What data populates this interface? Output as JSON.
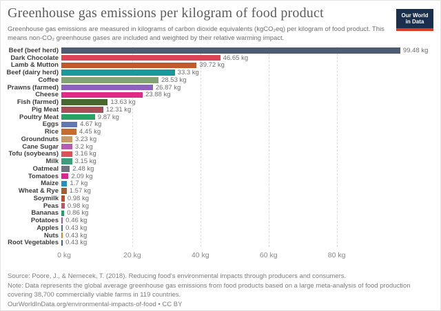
{
  "header": {
    "logo": {
      "line1": "Our World",
      "line2": "in Data",
      "bg": "#1a2e4d",
      "accent": "#dc3a22"
    }
  },
  "chart_data": {
    "type": "bar",
    "orientation": "horizontal",
    "title": "Greenhouse gas emissions per kilogram of food product",
    "subtitle": "Greenhouse gas emissions are measured in kilograms of carbon dioxide equivalents (kgCO₂eq) per kilogram of food product. This means non-CO₂ greenhouse gases are included and weighted by their relative warming impact.",
    "unit": "kg",
    "xlim": [
      0,
      109.2
    ],
    "grid": true,
    "categories": [
      "Beef (beef herd)",
      "Dark Chocolate",
      "Lamb & Mutton",
      "Beef (dairy herd)",
      "Coffee",
      "Prawns (farmed)",
      "Cheese",
      "Fish (farmed)",
      "Pig Meat",
      "Poultry Meat",
      "Eggs",
      "Rice",
      "Groundnuts",
      "Cane Sugar",
      "Tofu (soybeans)",
      "Milk",
      "Oatmeal",
      "Tomatoes",
      "Maize",
      "Wheat & Rye",
      "Soymilk",
      "Peas",
      "Bananas",
      "Potatoes",
      "Apples",
      "Nuts",
      "Root Vegetables"
    ],
    "values": [
      99.48,
      46.65,
      39.72,
      33.3,
      28.53,
      26.87,
      23.88,
      13.63,
      12.31,
      9.87,
      4.67,
      4.45,
      3.23,
      3.2,
      3.16,
      3.15,
      2.48,
      2.09,
      1.7,
      1.57,
      0.98,
      0.98,
      0.86,
      0.46,
      0.43,
      0.43,
      0.43
    ],
    "value_labels": [
      "99.48 kg",
      "46.65 kg",
      "39.72 kg",
      "33.3 kg",
      "28.53 kg",
      "26.87 kg",
      "23.88 kg",
      "13.63 kg",
      "12.31 kg",
      "9.87 kg",
      "4.67 kg",
      "4.45 kg",
      "3.23 kg",
      "3.2 kg",
      "3.16 kg",
      "3.15 kg",
      "2.48 kg",
      "2.09 kg",
      "1.7 kg",
      "1.57 kg",
      "0.98 kg",
      "0.98 kg",
      "0.86 kg",
      "0.46 kg",
      "0.43 kg",
      "0.43 kg",
      "0.43 kg"
    ],
    "colors": [
      "#4d5b75",
      "#db4357",
      "#c2592a",
      "#18999c",
      "#83a374",
      "#8e61c0",
      "#e02a86",
      "#47682e",
      "#a84e57",
      "#27a463",
      "#6377b2",
      "#c96b2d",
      "#c79b67",
      "#b75cb5",
      "#db5258",
      "#3d9c79",
      "#6e7581",
      "#e0238e",
      "#2492c0",
      "#a85d33",
      "#c44a21",
      "#ca4f63",
      "#1ea267",
      "#a05aa3",
      "#4a6fb1",
      "#d28436",
      "#3e5c94"
    ],
    "x_ticks": [
      {
        "value": 0,
        "label": "0 kg"
      },
      {
        "value": 20,
        "label": "20 kg"
      },
      {
        "value": 40,
        "label": "40 kg"
      },
      {
        "value": 60,
        "label": "60 kg"
      },
      {
        "value": 80,
        "label": "80 kg"
      }
    ]
  },
  "footer": {
    "source": "Source: Poore, J., & Nemecek, T. (2018). Reducing food's environmental impacts through producers and consumers.",
    "note": "Note: Data represents the global average greenhouse gas emissions from food products based on a large meta-analysis of food production covering 38,700 commercially viable farms in 119 countries.",
    "link": "OurWorldInData.org/environmental-impacts-of-food • CC BY"
  }
}
